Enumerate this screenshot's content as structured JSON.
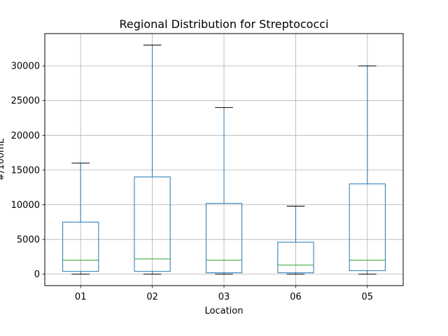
{
  "chart_data": {
    "type": "box",
    "title": "Regional Distribution for Streptococci",
    "xlabel": "Location",
    "ylabel": "#/100mL",
    "categories": [
      "01",
      "02",
      "03",
      "06",
      "05"
    ],
    "boxes": [
      {
        "category": "01",
        "whisker_low": 0,
        "q1": 400,
        "median": 2000,
        "q3": 7500,
        "whisker_high": 16000
      },
      {
        "category": "02",
        "whisker_low": 0,
        "q1": 400,
        "median": 2200,
        "q3": 14000,
        "whisker_high": 33000
      },
      {
        "category": "03",
        "whisker_low": 0,
        "q1": 200,
        "median": 2000,
        "q3": 10200,
        "whisker_high": 24000
      },
      {
        "category": "06",
        "whisker_low": 0,
        "q1": 200,
        "median": 1300,
        "q3": 4600,
        "whisker_high": 9800
      },
      {
        "category": "05",
        "whisker_low": 0,
        "q1": 500,
        "median": 2000,
        "q3": 13000,
        "whisker_high": 30000
      }
    ],
    "yticks": [
      0,
      5000,
      10000,
      15000,
      20000,
      25000,
      30000
    ],
    "ylim": [
      -1650,
      34650
    ],
    "grid": true,
    "box_color": "#1f77b4",
    "median_color": "#2ca02c",
    "cap_color": "#000000",
    "grid_color": "#b0b0b0"
  }
}
